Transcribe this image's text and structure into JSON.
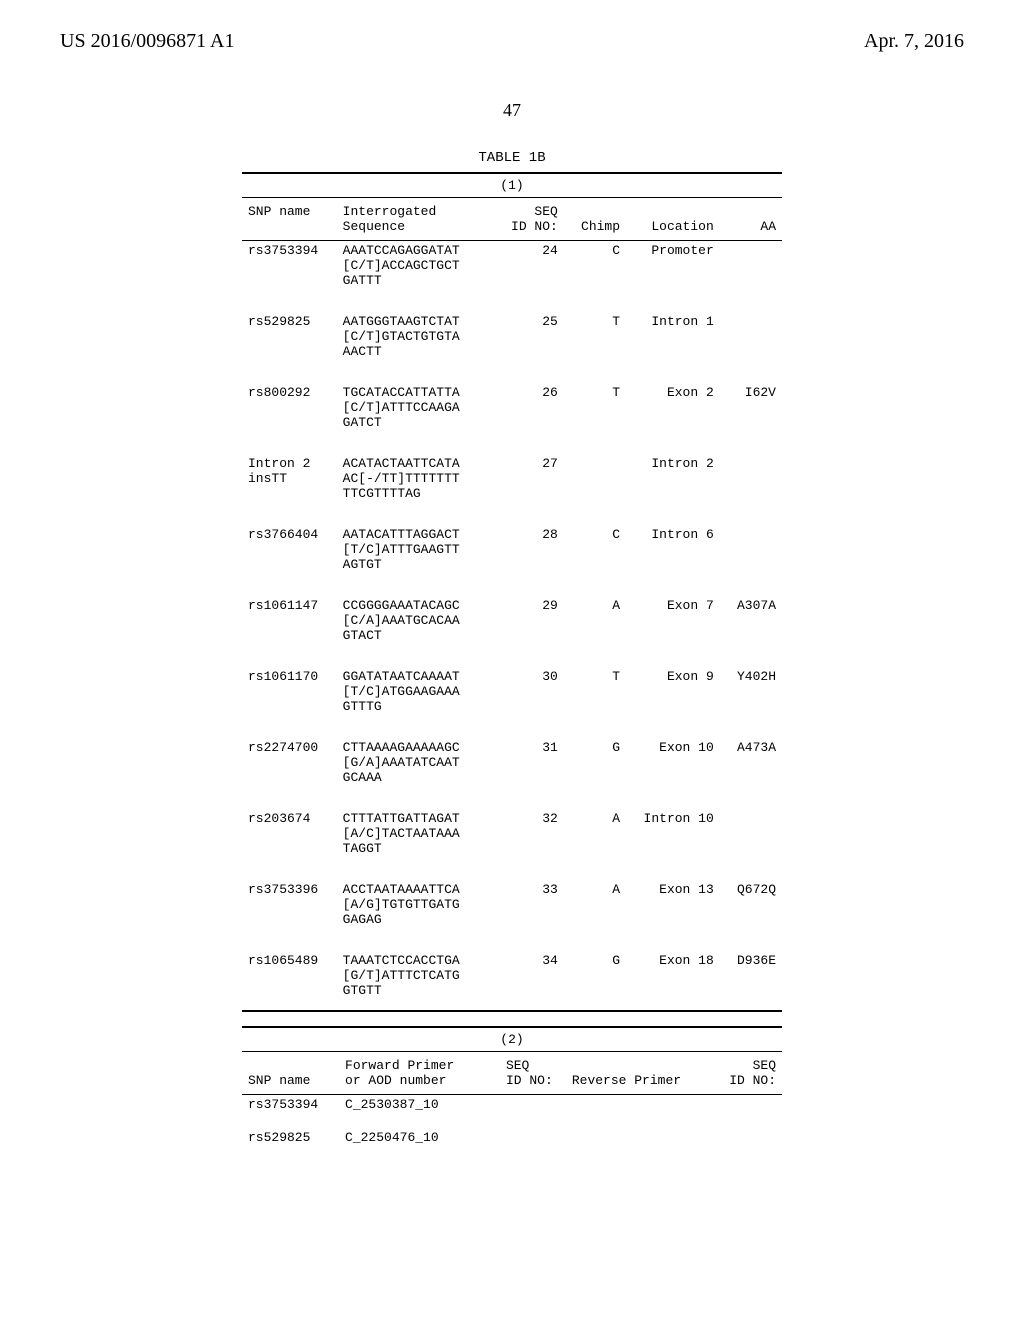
{
  "header": {
    "left": "US 2016/0096871 A1",
    "right": "Apr. 7, 2016",
    "page": "47"
  },
  "table": {
    "title": "TABLE 1B",
    "section1": {
      "caption": "(1)",
      "headers": {
        "snp": "SNP name",
        "seq1": "Interrogated",
        "seq2": "Sequence",
        "id1": "SEQ",
        "id2": "ID NO:",
        "chimp": "Chimp",
        "loc": "Location",
        "aa": "AA"
      },
      "rows": [
        {
          "snp": "rs3753394",
          "seq": [
            "AAATCCAGAGGATAT",
            "[C/T]ACCAGCTGCT",
            "GATTT"
          ],
          "id": "24",
          "chimp": "C",
          "loc": "Promoter",
          "aa": ""
        },
        {
          "snp": "rs529825",
          "seq": [
            "AATGGGTAAGTCTAT",
            "[C/T]GTACTGTGTA",
            "AACTT"
          ],
          "id": "25",
          "chimp": "T",
          "loc": "Intron 1",
          "aa": ""
        },
        {
          "snp": "rs800292",
          "seq": [
            "TGCATACCATTATTA",
            "[C/T]ATTTCCAAGA",
            "GATCT"
          ],
          "id": "26",
          "chimp": "T",
          "loc": "Exon 2",
          "aa": "I62V"
        },
        {
          "snp": "Intron 2\ninsTT",
          "seq": [
            "ACATACTAATTCATA",
            "AC[-/TT]TTTTTTT",
            "TTCGTTTTAG"
          ],
          "id": "27",
          "chimp": "",
          "loc": "Intron 2",
          "aa": ""
        },
        {
          "snp": "rs3766404",
          "seq": [
            "AATACATTTAGGACT",
            "[T/C]ATTTGAAGTT",
            "AGTGT"
          ],
          "id": "28",
          "chimp": "C",
          "loc": "Intron 6",
          "aa": ""
        },
        {
          "snp": "rs1061147",
          "seq": [
            "CCGGGGAAATACAGC",
            "[C/A]AAATGCACAA",
            "GTACT"
          ],
          "id": "29",
          "chimp": "A",
          "loc": "Exon 7",
          "aa": "A307A"
        },
        {
          "snp": "rs1061170",
          "seq": [
            "GGATATAATCAAAAT",
            "[T/C]ATGGAAGAAA",
            "GTTTG"
          ],
          "id": "30",
          "chimp": "T",
          "loc": "Exon 9",
          "aa": "Y402H"
        },
        {
          "snp": "rs2274700",
          "seq": [
            "CTTAAAAGAAAAAGC",
            "[G/A]AAATATCAAT",
            "GCAAA"
          ],
          "id": "31",
          "chimp": "G",
          "loc": "Exon 10",
          "aa": "A473A"
        },
        {
          "snp": "rs203674",
          "seq": [
            "CTTTATTGATTAGAT",
            "[A/C]TACTAATAAA",
            "TAGGT"
          ],
          "id": "32",
          "chimp": "A",
          "loc": "Intron 10",
          "aa": ""
        },
        {
          "snp": "rs3753396",
          "seq": [
            "ACCTAATAAAATTCA",
            "[A/G]TGTGTTGATG",
            "GAGAG"
          ],
          "id": "33",
          "chimp": "A",
          "loc": "Exon 13",
          "aa": "Q672Q"
        },
        {
          "snp": "rs1065489",
          "seq": [
            "TAAATCTCCACCTGA",
            "[G/T]ATTTCTCATG",
            "GTGTT"
          ],
          "id": "34",
          "chimp": "G",
          "loc": "Exon 18",
          "aa": "D936E"
        }
      ]
    },
    "section2": {
      "caption": "(2)",
      "headers": {
        "snp": "SNP name",
        "fp1": "Forward Primer",
        "fp2": "or AOD number",
        "id1": "SEQ",
        "id2": "ID NO:",
        "rev": "Reverse Primer",
        "id2b1": "SEQ",
        "id2b2": "ID NO:"
      },
      "rows": [
        {
          "snp": "rs3753394",
          "fp": "C_2530387_10"
        },
        {
          "snp": "rs529825",
          "fp": "C_2250476_10"
        }
      ]
    }
  }
}
